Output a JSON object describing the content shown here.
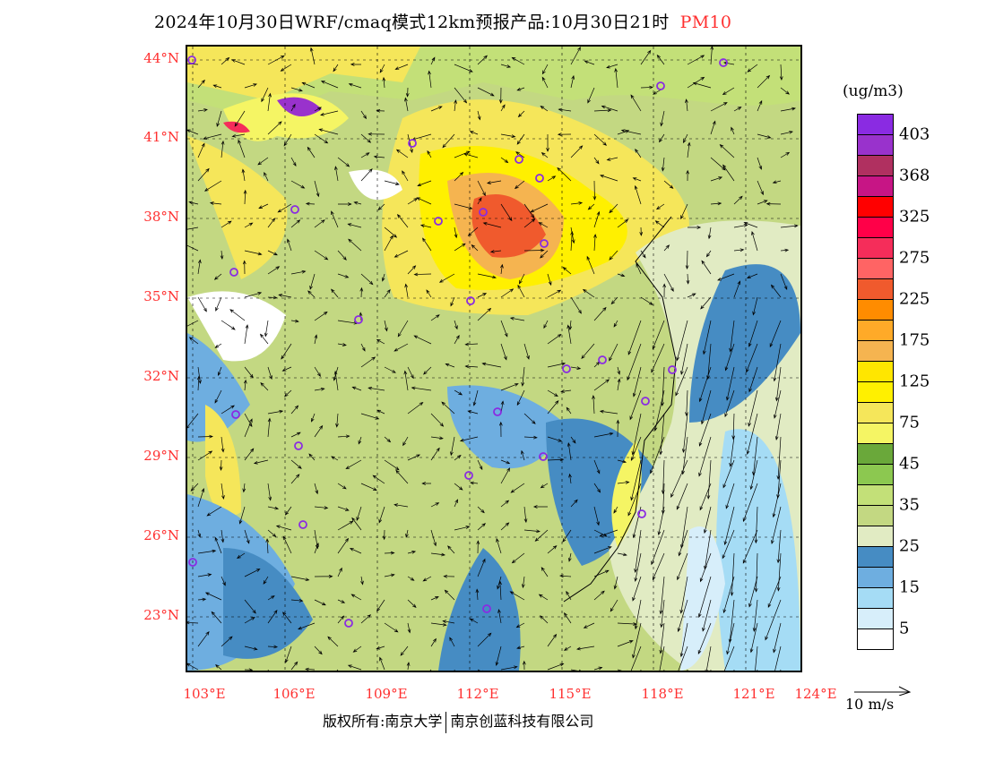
{
  "title": {
    "text": "2024年10月30日WRF/cmaq模式12km预报产品:10月30日21时",
    "species": "PM10"
  },
  "lat_labels": [
    "44°N",
    "41°N",
    "38°N",
    "35°N",
    "32°N",
    "29°N",
    "26°N",
    "23°N"
  ],
  "lon_labels": [
    "103°E",
    "106°E",
    "109°E",
    "112°E",
    "115°E",
    "118°E",
    "121°E",
    "124°E"
  ],
  "legend": {
    "unit": "(ug/m3)",
    "labels": [
      "403",
      "368",
      "325",
      "275",
      "225",
      "175",
      "125",
      "75",
      "45",
      "35",
      "25",
      "15",
      "5"
    ],
    "colors": [
      "#8a2be2",
      "#9932cc",
      "#b03060",
      "#c71585",
      "#ff0000",
      "#ff0048",
      "#f52d5a",
      "#ff6464",
      "#f05a2d",
      "#ff8c00",
      "#ffaa28",
      "#f5b450",
      "#ffe600",
      "#fff000",
      "#f5e65a",
      "#f5f564",
      "#6aa83a",
      "#8cc850",
      "#c3e078",
      "#c3d882",
      "#e1ebc3",
      "#468cc3",
      "#6eaee0",
      "#a5dcf5",
      "#d7eefa",
      "#ffffff"
    ]
  },
  "wind_ref": "10 m/s",
  "copyright": {
    "left": "版权所有:南京大学",
    "right": "南京创蓝科技有限公司"
  }
}
